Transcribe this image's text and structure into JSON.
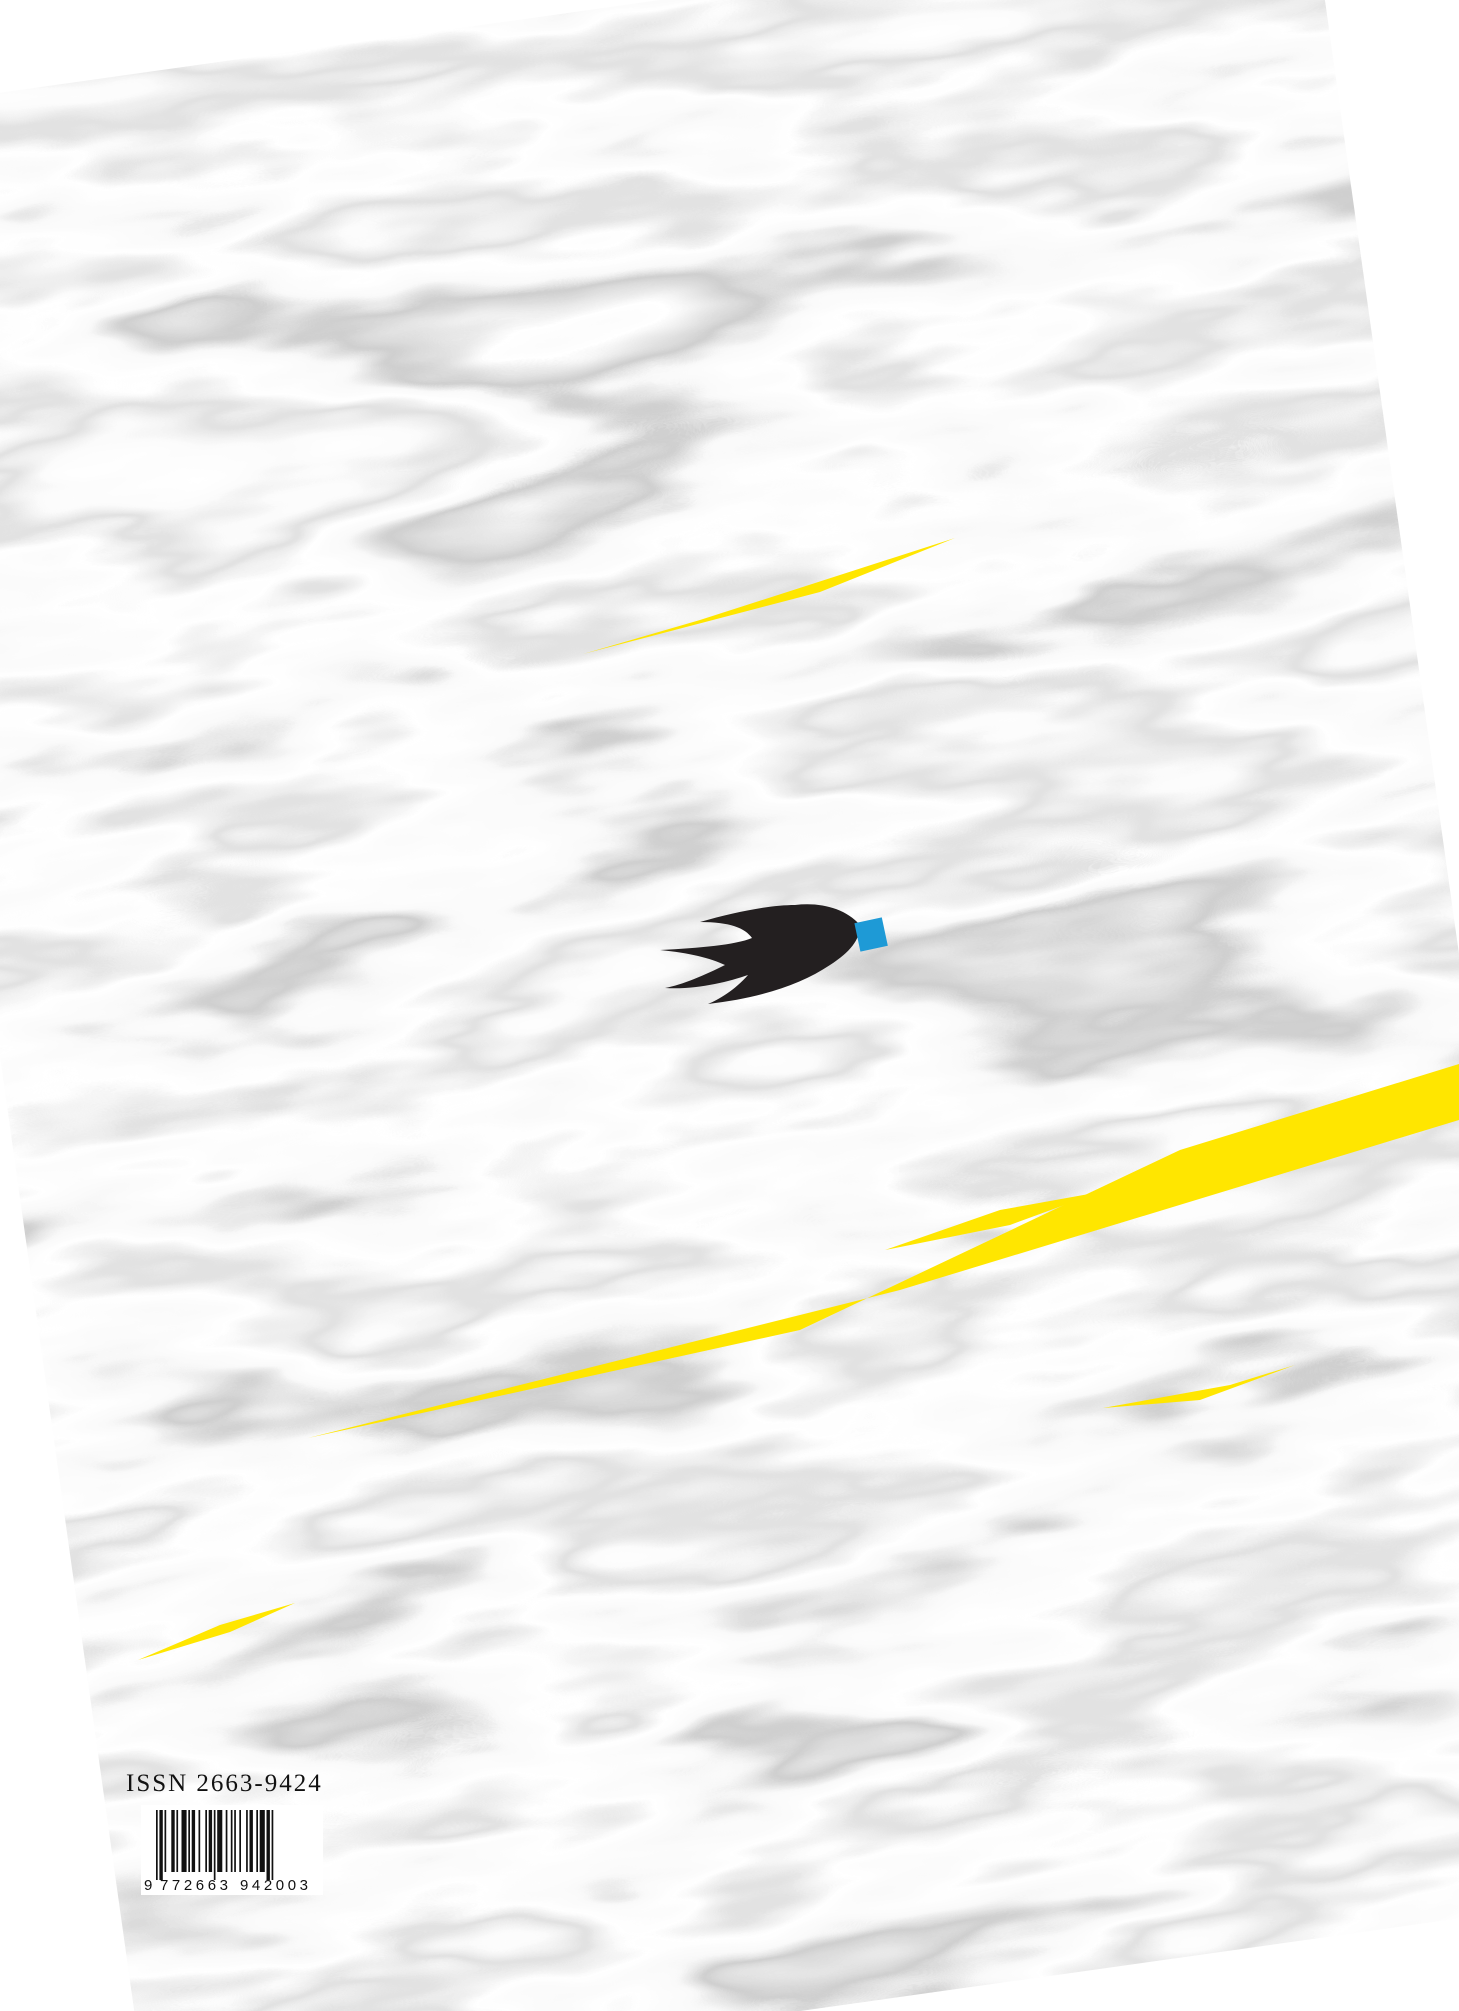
{
  "issn": "ISSN 2663-9424",
  "barcode": {
    "lead_digit": "9",
    "left_digits": "772663",
    "right_digits": "942003"
  }
}
